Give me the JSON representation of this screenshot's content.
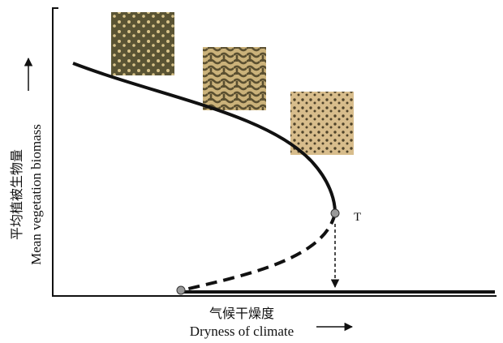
{
  "y_axis": {
    "label_zh": "平均植被生物量",
    "label_en": "Mean vegetation biomass"
  },
  "x_axis": {
    "label_zh": "气候干燥度",
    "label_en": "Dryness of climate"
  },
  "point_label": "T"
}
